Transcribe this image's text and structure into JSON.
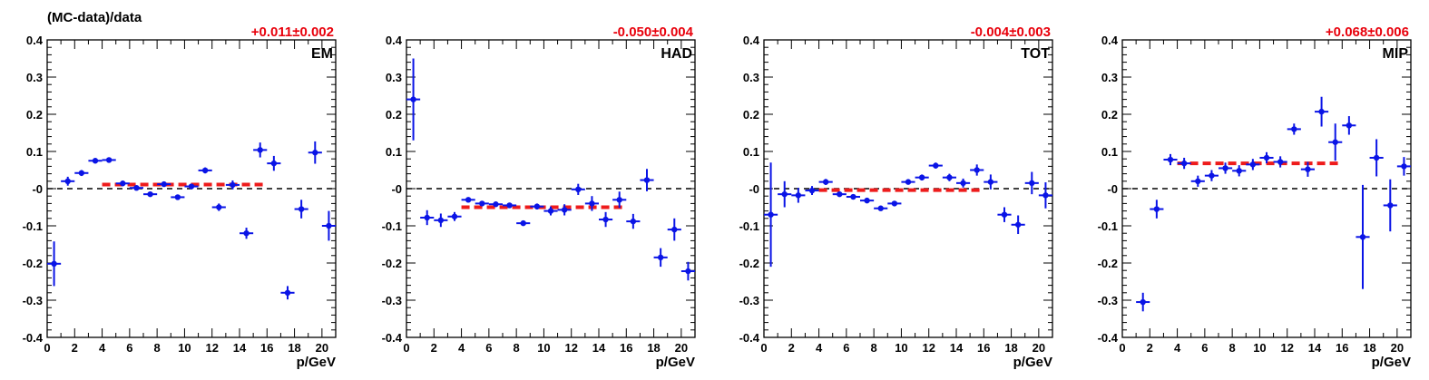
{
  "colors": {
    "points": "#0a14e6",
    "fit": "#ee1b1b",
    "reference": "#000000"
  },
  "chart_data": [
    {
      "type": "scatter",
      "panel_label": "EM",
      "fit_result": "+0.011±0.002",
      "ylabel": "(MC-data)/data",
      "xlabel": "p/GeV",
      "xlim": [
        0,
        21
      ],
      "ylim": [
        -0.4,
        0.4
      ],
      "xticks": [
        "0",
        "2",
        "4",
        "6",
        "8",
        "10",
        "12",
        "14",
        "16",
        "18",
        "20"
      ],
      "yticks": [
        "-0.4",
        "-0.3",
        "-0.2",
        "-0.1",
        "-0",
        "0.1",
        "0.2",
        "0.3",
        "0.4"
      ],
      "grid": false,
      "fit": {
        "value": 0.011,
        "x_range": [
          4,
          16
        ]
      },
      "series": [
        {
          "x": [
            0.5,
            1.5,
            2.5,
            3.5,
            4.5,
            5.5,
            6.5,
            7.5,
            8.5,
            9.5,
            10.5,
            11.5,
            12.5,
            13.5,
            14.5,
            15.5,
            16.5,
            17.5,
            18.5,
            19.5,
            20.5
          ],
          "y": [
            -0.202,
            0.02,
            0.042,
            0.075,
            0.077,
            0.014,
            0.002,
            -0.015,
            0.012,
            -0.023,
            0.006,
            0.049,
            -0.05,
            0.01,
            -0.12,
            0.104,
            0.068,
            -0.28,
            -0.055,
            0.097,
            -0.1
          ],
          "yerr": [
            0.06,
            0.012,
            0.008,
            0.006,
            0.006,
            0.006,
            0.006,
            0.006,
            0.006,
            0.006,
            0.006,
            0.008,
            0.01,
            0.012,
            0.015,
            0.02,
            0.02,
            0.018,
            0.025,
            0.03,
            0.04
          ]
        }
      ]
    },
    {
      "type": "scatter",
      "panel_label": "HAD",
      "fit_result": "-0.050±0.004",
      "xlabel": "p/GeV",
      "xlim": [
        0,
        21
      ],
      "ylim": [
        -0.4,
        0.4
      ],
      "xticks": [
        "0",
        "2",
        "4",
        "6",
        "8",
        "10",
        "12",
        "14",
        "16",
        "18",
        "20"
      ],
      "yticks": [
        "-0.4",
        "-0.3",
        "-0.2",
        "-0.1",
        "-0",
        "0.1",
        "0.2",
        "0.3",
        "0.4"
      ],
      "grid": false,
      "fit": {
        "value": -0.05,
        "x_range": [
          4,
          16
        ]
      },
      "series": [
        {
          "x": [
            0.5,
            1.5,
            2.5,
            3.5,
            4.5,
            5.5,
            6.5,
            7.5,
            8.5,
            9.5,
            10.5,
            11.5,
            12.5,
            13.5,
            14.5,
            15.5,
            16.5,
            17.5,
            18.5,
            19.5,
            20.5
          ],
          "y": [
            0.24,
            -0.078,
            -0.085,
            -0.075,
            -0.03,
            -0.04,
            -0.042,
            -0.045,
            -0.093,
            -0.048,
            -0.06,
            -0.057,
            -0.002,
            -0.04,
            -0.083,
            -0.03,
            -0.088,
            0.023,
            -0.185,
            -0.11,
            -0.222
          ],
          "yerr": [
            0.11,
            0.02,
            0.018,
            0.012,
            0.006,
            0.006,
            0.006,
            0.006,
            0.006,
            0.008,
            0.012,
            0.015,
            0.015,
            0.02,
            0.02,
            0.022,
            0.02,
            0.03,
            0.025,
            0.03,
            0.025
          ]
        }
      ]
    },
    {
      "type": "scatter",
      "panel_label": "TOT",
      "fit_result": "-0.004±0.003",
      "xlabel": "p/GeV",
      "xlim": [
        0,
        21
      ],
      "ylim": [
        -0.4,
        0.4
      ],
      "xticks": [
        "0",
        "2",
        "4",
        "6",
        "8",
        "10",
        "12",
        "14",
        "16",
        "18",
        "20"
      ],
      "yticks": [
        "-0.4",
        "-0.3",
        "-0.2",
        "-0.1",
        "-0",
        "0.1",
        "0.2",
        "0.3",
        "0.4"
      ],
      "grid": false,
      "fit": {
        "value": -0.004,
        "x_range": [
          4,
          16
        ]
      },
      "series": [
        {
          "x": [
            0.5,
            1.5,
            2.5,
            3.5,
            4.5,
            5.5,
            6.5,
            7.5,
            8.5,
            9.5,
            10.5,
            11.5,
            12.5,
            13.5,
            14.5,
            15.5,
            16.5,
            17.5,
            18.5,
            19.5,
            20.5
          ],
          "y": [
            -0.07,
            -0.015,
            -0.018,
            -0.005,
            0.018,
            -0.015,
            -0.022,
            -0.032,
            -0.053,
            -0.04,
            0.018,
            0.03,
            0.062,
            0.03,
            0.015,
            0.05,
            0.018,
            -0.07,
            -0.097,
            0.015,
            -0.018
          ],
          "yerr": [
            0.14,
            0.035,
            0.02,
            0.012,
            0.008,
            0.006,
            0.006,
            0.006,
            0.006,
            0.006,
            0.006,
            0.008,
            0.008,
            0.01,
            0.012,
            0.015,
            0.02,
            0.02,
            0.025,
            0.03,
            0.035
          ]
        }
      ]
    },
    {
      "type": "scatter",
      "panel_label": "MIP",
      "fit_result": "+0.068±0.006",
      "xlabel": "p/GeV",
      "xlim": [
        0,
        21
      ],
      "ylim": [
        -0.4,
        0.4
      ],
      "xticks": [
        "0",
        "2",
        "4",
        "6",
        "8",
        "10",
        "12",
        "14",
        "16",
        "18",
        "20"
      ],
      "yticks": [
        "-0.4",
        "-0.3",
        "-0.2",
        "-0.1",
        "-0",
        "0.1",
        "0.2",
        "0.3",
        "0.4"
      ],
      "grid": false,
      "fit": {
        "value": 0.068,
        "x_range": [
          4,
          16
        ]
      },
      "series": [
        {
          "x": [
            1.5,
            2.5,
            3.5,
            4.5,
            5.5,
            6.5,
            7.5,
            8.5,
            9.5,
            10.5,
            11.5,
            12.5,
            13.5,
            14.5,
            15.5,
            16.5,
            17.5,
            18.5,
            19.5,
            20.5
          ],
          "y": [
            -0.305,
            -0.055,
            0.078,
            0.068,
            0.02,
            0.035,
            0.055,
            0.048,
            0.065,
            0.083,
            0.072,
            0.16,
            0.052,
            0.207,
            0.125,
            0.17,
            -0.13,
            0.083,
            -0.045,
            0.06
          ],
          "yerr": [
            0.025,
            0.025,
            0.015,
            0.015,
            0.015,
            0.015,
            0.015,
            0.015,
            0.015,
            0.015,
            0.015,
            0.015,
            0.02,
            0.04,
            0.05,
            0.025,
            0.14,
            0.05,
            0.07,
            0.025
          ]
        }
      ]
    }
  ]
}
